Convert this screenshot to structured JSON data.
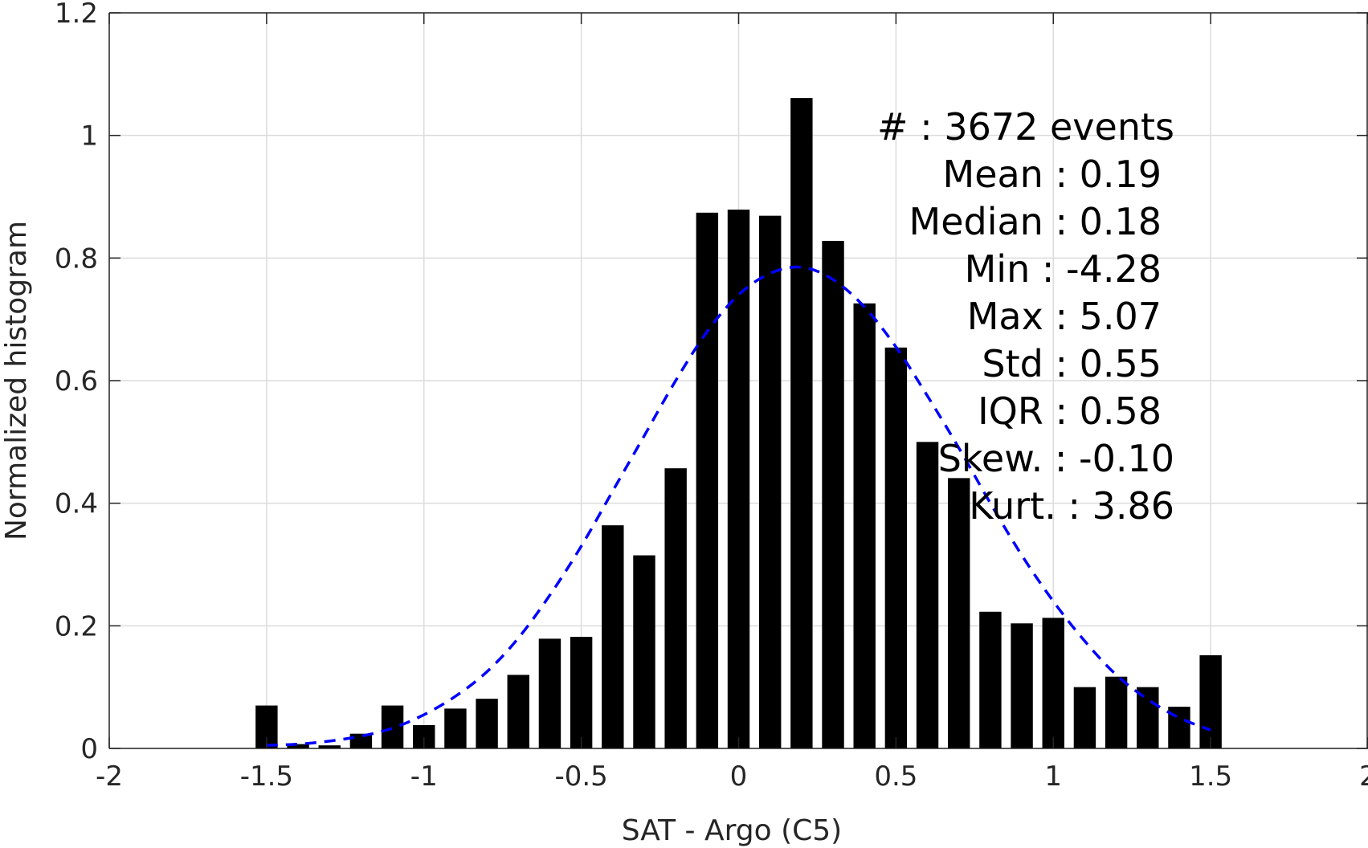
{
  "chart_data": {
    "type": "bar",
    "title": "",
    "xlabel": "SAT - Argo (C5)",
    "ylabel": "Normalized histogram",
    "xlim": [
      -2,
      2
    ],
    "ylim": [
      0,
      1.2
    ],
    "grid": true,
    "x_ticks": [
      "-2",
      "-1.5",
      "-1",
      "-0.5",
      "0",
      "0.5",
      "1",
      "1.5",
      "2"
    ],
    "x_tick_values": [
      -2,
      -1.5,
      -1,
      -0.5,
      0,
      0.5,
      1,
      1.5,
      2
    ],
    "y_ticks": [
      "0",
      "0.2",
      "0.4",
      "0.6",
      "0.8",
      "1",
      "1.2"
    ],
    "y_tick_values": [
      0,
      0.2,
      0.4,
      0.6,
      0.8,
      1,
      1.2
    ],
    "bar_color": "#000000",
    "bar_width": 0.07,
    "bars": {
      "x": [
        -1.5,
        -1.4,
        -1.3,
        -1.2,
        -1.1,
        -1.0,
        -0.9,
        -0.8,
        -0.7,
        -0.6,
        -0.5,
        -0.4,
        -0.3,
        -0.2,
        -0.1,
        0.0,
        0.1,
        0.2,
        0.3,
        0.4,
        0.5,
        0.6,
        0.7,
        0.8,
        0.9,
        1.0,
        1.1,
        1.2,
        1.3,
        1.4,
        1.5
      ],
      "values": [
        0.07,
        0.007,
        0.005,
        0.024,
        0.07,
        0.038,
        0.065,
        0.081,
        0.12,
        0.179,
        0.182,
        0.364,
        0.315,
        0.457,
        0.874,
        0.879,
        0.869,
        1.061,
        0.828,
        0.726,
        0.654,
        0.5,
        0.441,
        0.223,
        0.204,
        0.213,
        0.1,
        0.117,
        0.1,
        0.068,
        0.152
      ]
    },
    "fit": {
      "style": "dashed",
      "color": "#0000ff",
      "x": [
        -1.5,
        -1.4,
        -1.3,
        -1.2,
        -1.1,
        -1.0,
        -0.9,
        -0.8,
        -0.7,
        -0.6,
        -0.5,
        -0.4,
        -0.3,
        -0.2,
        -0.1,
        0.0,
        0.1,
        0.2,
        0.3,
        0.4,
        0.5,
        0.6,
        0.7,
        0.8,
        0.9,
        1.0,
        1.1,
        1.2,
        1.3,
        1.4,
        1.5
      ],
      "values": [
        0.005,
        0.007,
        0.012,
        0.02,
        0.033,
        0.055,
        0.085,
        0.125,
        0.18,
        0.25,
        0.33,
        0.42,
        0.51,
        0.6,
        0.68,
        0.74,
        0.775,
        0.785,
        0.765,
        0.72,
        0.655,
        0.575,
        0.49,
        0.4,
        0.315,
        0.24,
        0.175,
        0.12,
        0.08,
        0.05,
        0.03
      ]
    },
    "stats": [
      {
        "label": "#  ",
        "value": "3672 events"
      },
      {
        "label": "Mean",
        "value": "0.19"
      },
      {
        "label": "Median",
        "value": "0.18"
      },
      {
        "label": "Min",
        "value": "-4.28"
      },
      {
        "label": "Max",
        "value": "5.07"
      },
      {
        "label": "Std",
        "value": "0.55"
      },
      {
        "label": "IQR",
        "value": "0.58"
      },
      {
        "label": "Skew.",
        "value": "-0.10"
      },
      {
        "label": "Kurt.",
        "value": "3.86"
      }
    ]
  }
}
